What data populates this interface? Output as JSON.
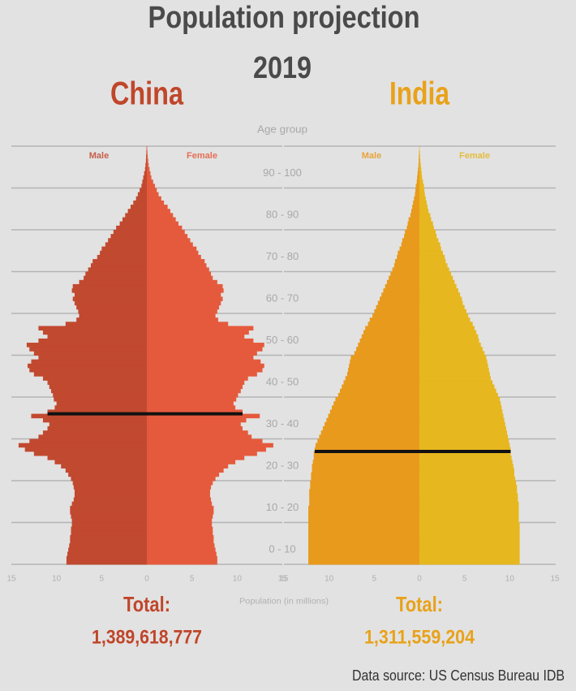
{
  "title": "Population projection",
  "subtitle": "2019",
  "y_label": "Age group",
  "x_label": "Population (in millions)",
  "source": "Data source: US Census Bureau IDB",
  "age_groups": [
    "0 - 10",
    "10 - 20",
    "20 - 30",
    "30 - 40",
    "40 - 50",
    "50 - 60",
    "60 - 70",
    "70 - 80",
    "80 - 90",
    "90 - 100"
  ],
  "chart_data": [
    {
      "type": "pyramid",
      "title": "China",
      "title_color": "#c0462a",
      "total_label": "Total:",
      "total": "1,389,618,777",
      "xlim": [
        0,
        15
      ],
      "xticks": [
        0,
        5,
        10,
        15
      ],
      "ylim": [
        0,
        100
      ],
      "yticks": [
        0,
        10,
        20,
        30,
        40,
        50,
        60,
        70,
        80,
        90,
        100
      ],
      "median_age": 36,
      "series": [
        {
          "name": "Male",
          "color": "#c1492f",
          "values": [
            8.9,
            8.9,
            8.8,
            8.7,
            8.6,
            8.5,
            8.5,
            8.4,
            8.4,
            8.3,
            8.3,
            8.4,
            8.5,
            8.5,
            8.3,
            8.1,
            8.0,
            8.0,
            8.1,
            8.2,
            8.4,
            8.7,
            9.0,
            9.5,
            10.2,
            11.0,
            12.5,
            13.5,
            14.2,
            13.0,
            12.0,
            11.5,
            11.0,
            10.8,
            11.5,
            12.8,
            11.0,
            10.2,
            10.0,
            10.3,
            10.4,
            10.6,
            10.8,
            11.0,
            11.5,
            12.5,
            13.0,
            13.2,
            12.8,
            12.0,
            12.5,
            13.0,
            13.3,
            12.0,
            11.0,
            11.5,
            12.0,
            9.0,
            7.8,
            7.5,
            7.6,
            7.8,
            8.0,
            8.2,
            8.0,
            8.3,
            8.2,
            7.5,
            7.0,
            6.8,
            6.5,
            6.2,
            6.0,
            5.5,
            5.2,
            5.0,
            4.6,
            4.3,
            4.0,
            3.7,
            3.4,
            3.0,
            2.7,
            2.4,
            2.1,
            1.8,
            1.5,
            1.2,
            1.0,
            0.8,
            0.6,
            0.5,
            0.4,
            0.3,
            0.2,
            0.15,
            0.1,
            0.08,
            0.05,
            0.03
          ]
        },
        {
          "name": "Female",
          "color": "#e55a3c",
          "values": [
            7.8,
            7.8,
            7.7,
            7.6,
            7.5,
            7.4,
            7.4,
            7.3,
            7.3,
            7.2,
            7.2,
            7.3,
            7.4,
            7.4,
            7.2,
            7.1,
            7.0,
            7.0,
            7.1,
            7.3,
            7.6,
            8.0,
            8.5,
            9.0,
            9.8,
            10.8,
            12.2,
            13.2,
            14.0,
            12.8,
            11.6,
            11.2,
            10.6,
            10.4,
            11.0,
            12.5,
            10.6,
            9.8,
            9.6,
            9.9,
            10.1,
            10.4,
            10.6,
            10.8,
            11.2,
            12.2,
            12.8,
            13.0,
            12.6,
            11.8,
            12.2,
            12.8,
            13.0,
            11.8,
            10.8,
            11.3,
            11.8,
            9.0,
            7.9,
            7.6,
            7.8,
            8.0,
            8.2,
            8.4,
            8.2,
            8.5,
            8.4,
            7.8,
            7.3,
            7.1,
            6.9,
            6.6,
            6.4,
            6.0,
            5.7,
            5.5,
            5.1,
            4.8,
            4.5,
            4.2,
            3.9,
            3.5,
            3.2,
            2.9,
            2.6,
            2.3,
            1.9,
            1.6,
            1.3,
            1.1,
            0.9,
            0.7,
            0.5,
            0.4,
            0.3,
            0.2,
            0.15,
            0.1,
            0.07,
            0.04
          ]
        }
      ]
    },
    {
      "type": "pyramid",
      "title": "India",
      "title_color": "#e8a21a",
      "total_label": "Total:",
      "total": "1,311,559,204",
      "xlim": [
        0,
        15
      ],
      "xticks": [
        0,
        5,
        10,
        15
      ],
      "ylim": [
        0,
        100
      ],
      "yticks": [
        0,
        10,
        20,
        30,
        40,
        50,
        60,
        70,
        80,
        90,
        100
      ],
      "median_age": 27,
      "series": [
        {
          "name": "Male",
          "color": "#e89a1c",
          "values": [
            12.3,
            12.3,
            12.3,
            12.3,
            12.3,
            12.3,
            12.3,
            12.3,
            12.3,
            12.3,
            12.3,
            12.3,
            12.3,
            12.3,
            12.2,
            12.2,
            12.2,
            12.2,
            12.1,
            12.1,
            12.0,
            12.0,
            11.9,
            11.9,
            11.8,
            11.7,
            11.7,
            11.6,
            11.5,
            11.3,
            11.1,
            10.9,
            10.7,
            10.5,
            10.3,
            10.1,
            9.9,
            9.7,
            9.5,
            9.3,
            9.0,
            8.8,
            8.6,
            8.4,
            8.2,
            8.0,
            7.9,
            7.8,
            7.7,
            7.6,
            7.2,
            7.0,
            6.8,
            6.6,
            6.4,
            6.2,
            6.0,
            5.7,
            5.5,
            5.2,
            5.0,
            4.8,
            4.6,
            4.4,
            4.2,
            4.0,
            3.8,
            3.6,
            3.4,
            3.2,
            3.0,
            2.8,
            2.7,
            2.5,
            2.4,
            2.2,
            2.0,
            1.9,
            1.7,
            1.6,
            1.4,
            1.3,
            1.2,
            1.0,
            0.9,
            0.8,
            0.7,
            0.6,
            0.5,
            0.45,
            0.4,
            0.3,
            0.25,
            0.2,
            0.15,
            0.1,
            0.08,
            0.06,
            0.04,
            0.02
          ]
        },
        {
          "name": "Female",
          "color": "#e6b71e",
          "values": [
            11.1,
            11.1,
            11.1,
            11.1,
            11.1,
            11.1,
            11.1,
            11.1,
            11.1,
            11.1,
            11.0,
            11.0,
            11.0,
            11.0,
            11.0,
            10.9,
            10.9,
            10.8,
            10.8,
            10.7,
            10.6,
            10.5,
            10.5,
            10.4,
            10.3,
            10.2,
            10.1,
            10.1,
            10.0,
            9.9,
            9.8,
            9.7,
            9.6,
            9.5,
            9.4,
            9.3,
            9.2,
            9.1,
            9.0,
            8.9,
            8.7,
            8.5,
            8.3,
            8.1,
            7.9,
            7.8,
            7.7,
            7.6,
            7.5,
            7.4,
            7.2,
            7.0,
            6.8,
            6.6,
            6.5,
            6.3,
            6.1,
            5.9,
            5.6,
            5.4,
            5.2,
            5.0,
            4.8,
            4.7,
            4.5,
            4.3,
            4.1,
            3.9,
            3.7,
            3.5,
            3.3,
            3.1,
            2.9,
            2.8,
            2.6,
            2.4,
            2.3,
            2.1,
            1.9,
            1.8,
            1.6,
            1.5,
            1.3,
            1.2,
            1.0,
            0.9,
            0.8,
            0.7,
            0.6,
            0.55,
            0.5,
            0.4,
            0.3,
            0.25,
            0.2,
            0.15,
            0.1,
            0.08,
            0.05,
            0.03
          ]
        }
      ]
    }
  ]
}
